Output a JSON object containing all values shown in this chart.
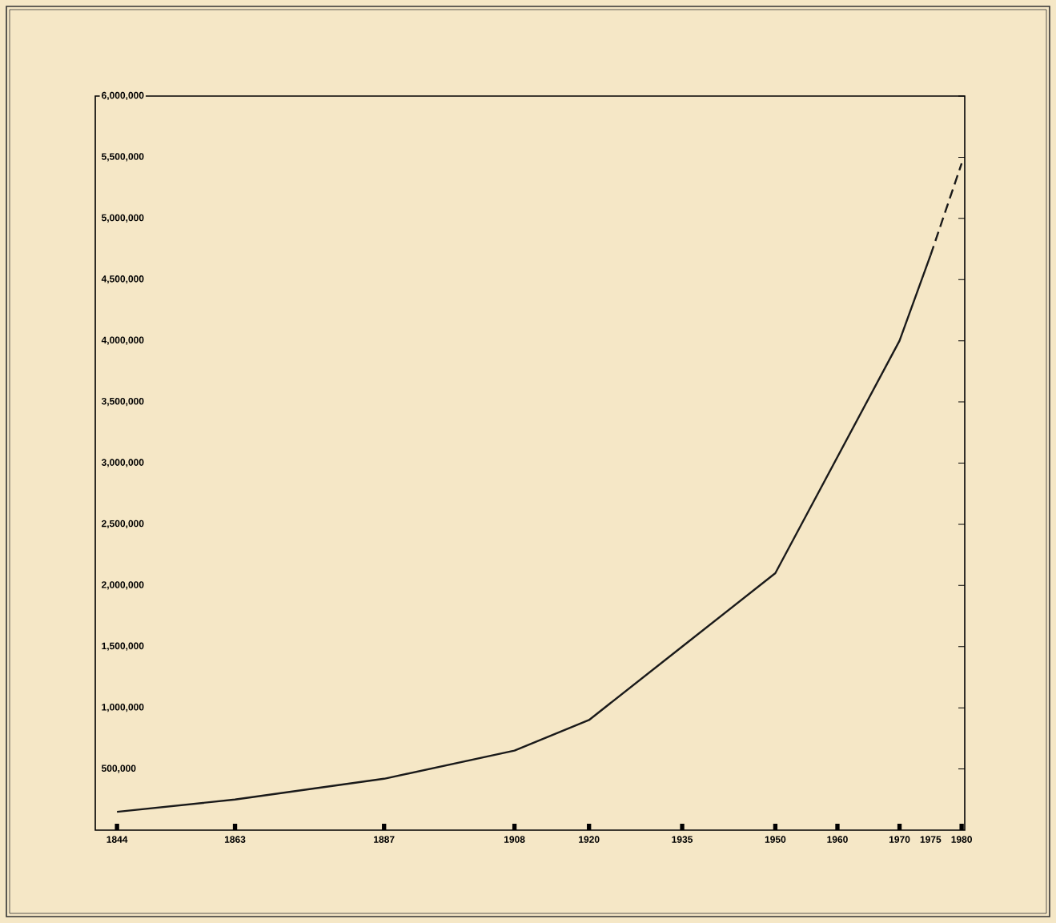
{
  "chart_data": {
    "type": "line",
    "xlim": [
      1840.5,
      1980.5
    ],
    "xticks": [
      1844,
      1863,
      1887,
      1908,
      1920,
      1935,
      1950,
      1960,
      1970,
      1975,
      1980
    ],
    "ylim": [
      0,
      6000000
    ],
    "yticks": [
      {
        "value": 500000,
        "label": "500,000"
      },
      {
        "value": 1000000,
        "label": "1,000,000"
      },
      {
        "value": 1500000,
        "label": "1,500,000"
      },
      {
        "value": 2000000,
        "label": "2,000,000"
      },
      {
        "value": 2500000,
        "label": "2,500,000"
      },
      {
        "value": 3000000,
        "label": "3,000,000"
      },
      {
        "value": 3500000,
        "label": "3,500,000"
      },
      {
        "value": 4000000,
        "label": "4,000,000"
      },
      {
        "value": 4500000,
        "label": "4,500,000"
      },
      {
        "value": 5000000,
        "label": "5,000,000"
      },
      {
        "value": 5500000,
        "label": "5,500,000"
      },
      {
        "value": 6000000,
        "label": "6,000,000"
      }
    ],
    "grid": false,
    "marker": "none",
    "series": [
      {
        "x": [
          1844,
          1863,
          1887,
          1908,
          1920,
          1935,
          1950,
          1960,
          1970,
          1975
        ],
        "values": [
          150000,
          250000,
          420000,
          650000,
          900000,
          1500000,
          2100000,
          3050000,
          4000000,
          4700000
        ],
        "color": "#1a1a1a",
        "line_style": "solid"
      },
      {
        "x": [
          1975,
          1980
        ],
        "values": [
          4700000,
          5450000
        ],
        "color": "#1a1a1a",
        "line_style": "dashed"
      }
    ]
  }
}
